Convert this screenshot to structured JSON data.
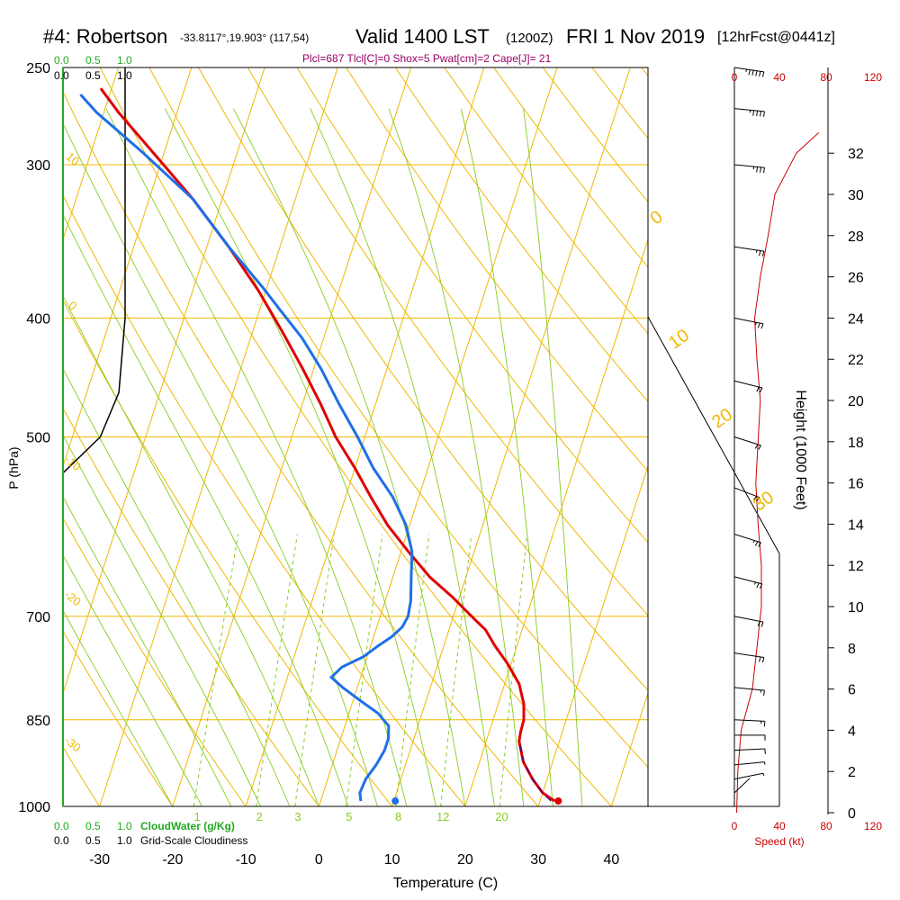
{
  "header": {
    "station": "#4: Robertson",
    "coords": "-33.8117°,19.903° (117,54)",
    "valid": "Valid 1400 LST",
    "zulu": "(1200Z)",
    "date": "FRI 1 Nov 2019",
    "forecast": "[12hrFcst@0441z]",
    "indices": "Plcl=687 Tlcl[C]=0 Shox=5 Pwat[cm]=2 Cape[J]= 21"
  },
  "cloud_scale": {
    "values": [
      "0.0",
      "0.5",
      "1.0"
    ],
    "cloudwater_label": "CloudWater (g/Kg)",
    "cloudiness_label": "Grid-Scale Cloudiness"
  },
  "speed_axis": {
    "ticks": [
      "0",
      "40",
      "80",
      "120"
    ],
    "label": "Speed (kt)"
  },
  "colors": {
    "temperature": "#e00000",
    "dewpoint": "#1e6fe8",
    "isobar_isotherm": "#f0b800",
    "mixing_ratio": "#88cc22",
    "moist_adiabat": "#88cc22",
    "parcel": "#550077",
    "wind_speed": "#cc0000",
    "cloud": "#22aa22",
    "indices": "#990066"
  },
  "chart_data": {
    "type": "line",
    "title": "#4: Robertson -33.8117°,19.903° (117,54) Valid 1400 LST (1200Z) FRI 1 Nov 2019 [12hrFcst@0441z]",
    "xlabel": "Temperature (C)",
    "ylabel": "P (hPa)",
    "y2label": "Height (1000 Feet)",
    "xlim": [
      -35,
      45
    ],
    "ylim": [
      1000,
      250
    ],
    "y_scale": "log",
    "x_ticks": [
      -30,
      -20,
      -10,
      0,
      10,
      20,
      30,
      40
    ],
    "pressure_ticks": [
      1000,
      850,
      700,
      500,
      400,
      300,
      250
    ],
    "height_ticks": [
      0,
      2,
      4,
      6,
      8,
      10,
      12,
      14,
      16,
      18,
      20,
      22,
      24,
      26,
      28,
      30,
      32
    ],
    "dry_adiabat_labels": [
      "10",
      "0",
      "-10",
      "-20",
      "-30"
    ],
    "moist_adiabat_labels": [
      "0",
      "10",
      "20",
      "30"
    ],
    "mixing_ratio_labels": [
      "1",
      "2",
      "3",
      "5",
      "8",
      "12",
      "20"
    ],
    "series": [
      {
        "name": "Temperature",
        "points": [
          [
            32,
            990
          ],
          [
            30,
            975
          ],
          [
            28,
            950
          ],
          [
            26,
            920
          ],
          [
            24.5,
            885
          ],
          [
            24.3,
            870
          ],
          [
            24.2,
            850
          ],
          [
            23.5,
            825
          ],
          [
            22,
            795
          ],
          [
            19.5,
            765
          ],
          [
            17,
            740
          ],
          [
            15,
            718
          ],
          [
            12.5,
            700
          ],
          [
            9,
            675
          ],
          [
            5,
            650
          ],
          [
            1,
            620
          ],
          [
            -3,
            590
          ],
          [
            -6.5,
            560
          ],
          [
            -10,
            530
          ],
          [
            -14,
            500
          ],
          [
            -17.5,
            470
          ],
          [
            -21.5,
            440
          ],
          [
            -26,
            410
          ],
          [
            -31,
            380
          ],
          [
            -37,
            350
          ],
          [
            -44,
            320
          ],
          [
            -51,
            295
          ],
          [
            -58,
            272
          ],
          [
            -61.5,
            260
          ]
        ]
      },
      {
        "name": "Dewpoint",
        "points": [
          [
            5.5,
            990
          ],
          [
            5,
            975
          ],
          [
            5.2,
            950
          ],
          [
            6,
            925
          ],
          [
            6.5,
            900
          ],
          [
            6.5,
            880
          ],
          [
            6,
            860
          ],
          [
            4,
            840
          ],
          [
            1,
            820
          ],
          [
            -2,
            800
          ],
          [
            -4,
            785
          ],
          [
            -3,
            770
          ],
          [
            -0.5,
            755
          ],
          [
            1,
            740
          ],
          [
            2.5,
            727
          ],
          [
            3.5,
            714
          ],
          [
            3.8,
            700
          ],
          [
            3.5,
            680
          ],
          [
            2.5,
            650
          ],
          [
            1.5,
            620
          ],
          [
            -0.5,
            590
          ],
          [
            -3.5,
            560
          ],
          [
            -7.5,
            530
          ],
          [
            -11,
            500
          ],
          [
            -15,
            470
          ],
          [
            -19,
            440
          ],
          [
            -23,
            415
          ],
          [
            -27,
            395
          ],
          [
            -30.5,
            378
          ],
          [
            -37,
            350
          ],
          [
            -44,
            320
          ],
          [
            -53,
            293
          ],
          [
            -61,
            272
          ],
          [
            -64,
            263
          ]
        ]
      },
      {
        "name": "Parcel",
        "points": [
          [
            31.5,
            990
          ],
          [
            30,
            975
          ],
          [
            28,
            950
          ],
          [
            26,
            920
          ],
          [
            24.5,
            885
          ]
        ]
      },
      {
        "name": "Cloud fraction",
        "points": [
          [
            1.0,
            250
          ],
          [
            1.0,
            400
          ],
          [
            0.9,
            460
          ],
          [
            0.6,
            500
          ],
          [
            0.0,
            535
          ]
        ]
      },
      {
        "name": "Wind speed",
        "points": [
          [
            2,
            0
          ],
          [
            3,
            2
          ],
          [
            6,
            4
          ],
          [
            16,
            6
          ],
          [
            20,
            8
          ],
          [
            24,
            10
          ],
          [
            24,
            12
          ],
          [
            21,
            14
          ],
          [
            19,
            16
          ],
          [
            21,
            18
          ],
          [
            23,
            20
          ],
          [
            20,
            22
          ],
          [
            18,
            24
          ],
          [
            23,
            26
          ],
          [
            30,
            28
          ],
          [
            36,
            30
          ],
          [
            55,
            32
          ],
          [
            75,
            33
          ]
        ]
      }
    ],
    "surface_points": [
      {
        "name": "Surface temperature",
        "x": 32.5,
        "p": 990
      },
      {
        "name": "Surface dewpoint",
        "x": 10.2,
        "p": 990
      }
    ],
    "wind_barbs": [
      {
        "p": 1000,
        "dir": 180,
        "kt": 2
      },
      {
        "p": 975,
        "dir": 210,
        "kt": 3
      },
      {
        "p": 950,
        "dir": 250,
        "kt": 5
      },
      {
        "p": 925,
        "dir": 260,
        "kt": 8
      },
      {
        "p": 900,
        "dir": 265,
        "kt": 10
      },
      {
        "p": 875,
        "dir": 270,
        "kt": 12
      },
      {
        "p": 850,
        "dir": 275,
        "kt": 15
      },
      {
        "p": 800,
        "dir": 280,
        "kt": 18
      },
      {
        "p": 750,
        "dir": 285,
        "kt": 20
      },
      {
        "p": 700,
        "dir": 290,
        "kt": 22
      },
      {
        "p": 650,
        "dir": 295,
        "kt": 25
      },
      {
        "p": 600,
        "dir": 300,
        "kt": 25
      },
      {
        "p": 550,
        "dir": 305,
        "kt": 22
      },
      {
        "p": 500,
        "dir": 300,
        "kt": 20
      },
      {
        "p": 450,
        "dir": 295,
        "kt": 22
      },
      {
        "p": 400,
        "dir": 290,
        "kt": 25
      },
      {
        "p": 350,
        "dir": 285,
        "kt": 28
      },
      {
        "p": 300,
        "dir": 280,
        "kt": 35
      },
      {
        "p": 270,
        "dir": 280,
        "kt": 45
      },
      {
        "p": 250,
        "dir": 285,
        "kt": 55
      }
    ]
  }
}
